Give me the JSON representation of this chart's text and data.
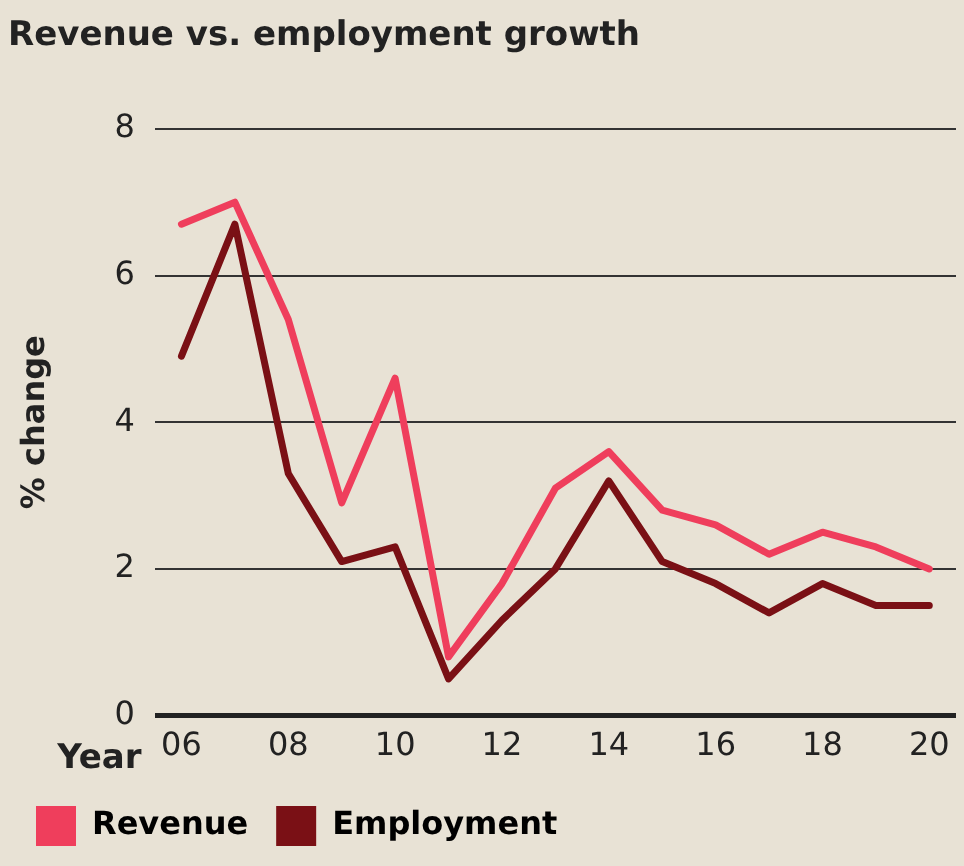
{
  "chart_data": {
    "type": "line",
    "title": "Revenue vs. employment growth",
    "ylabel": "% change",
    "xlabel": "Year",
    "x": [
      2006,
      2007,
      2008,
      2009,
      2010,
      2011,
      2012,
      2013,
      2014,
      2015,
      2016,
      2017,
      2018,
      2019,
      2020
    ],
    "series": [
      {
        "name": "Revenue",
        "color": "#ef3e5c",
        "values": [
          6.7,
          7.0,
          5.4,
          2.9,
          4.6,
          0.8,
          1.8,
          3.1,
          3.6,
          2.8,
          2.6,
          2.2,
          2.5,
          2.3,
          2.0
        ]
      },
      {
        "name": "Employment",
        "color": "#7a1015",
        "values": [
          4.9,
          6.7,
          3.3,
          2.1,
          2.3,
          0.5,
          1.3,
          2.0,
          3.2,
          2.1,
          1.8,
          1.4,
          1.8,
          1.5,
          1.5
        ]
      }
    ],
    "xlim": [
      2005.5,
      2020.5
    ],
    "xticks": [
      {
        "value": 2006,
        "label": "06"
      },
      {
        "value": 2008,
        "label": "08"
      },
      {
        "value": 2010,
        "label": "10"
      },
      {
        "value": 2012,
        "label": "12"
      },
      {
        "value": 2014,
        "label": "14"
      },
      {
        "value": 2016,
        "label": "16"
      },
      {
        "value": 2018,
        "label": "18"
      },
      {
        "value": 2020,
        "label": "20"
      }
    ],
    "ylim": [
      0,
      8
    ],
    "yticks": [
      0,
      2,
      4,
      6,
      8
    ],
    "grid": "y",
    "legend": "bottom",
    "marker": "none",
    "line_style": "solid"
  }
}
